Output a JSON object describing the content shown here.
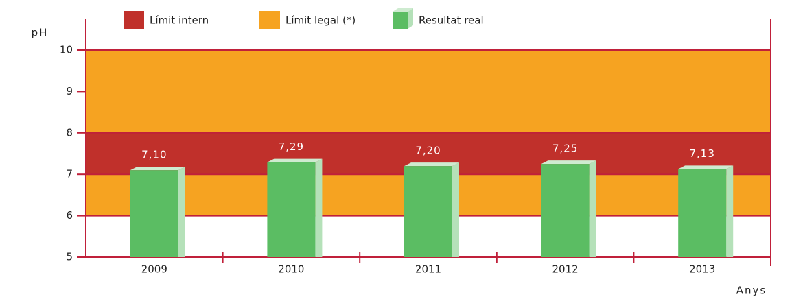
{
  "chart_data": {
    "type": "bar",
    "y_label": "pH",
    "x_label": "Anys",
    "categories": [
      "2009",
      "2010",
      "2011",
      "2012",
      "2013"
    ],
    "bands": [
      {
        "name": "Límit legal (*)",
        "color": "#f6a321",
        "range": [
          6,
          10
        ]
      },
      {
        "name": "Límit intern",
        "color": "#c0302b",
        "range": [
          7,
          8
        ]
      }
    ],
    "series": [
      {
        "name": "Resultat real",
        "color": "#5bbd63",
        "values": [
          7.1,
          7.29,
          7.2,
          7.25,
          7.13
        ],
        "value_labels": [
          "7,10",
          "7,29",
          "7,20",
          "7,25",
          "7,13"
        ]
      }
    ],
    "ylim": [
      5,
      10
    ],
    "yticks": [
      5,
      6,
      7,
      8,
      9,
      10
    ]
  }
}
